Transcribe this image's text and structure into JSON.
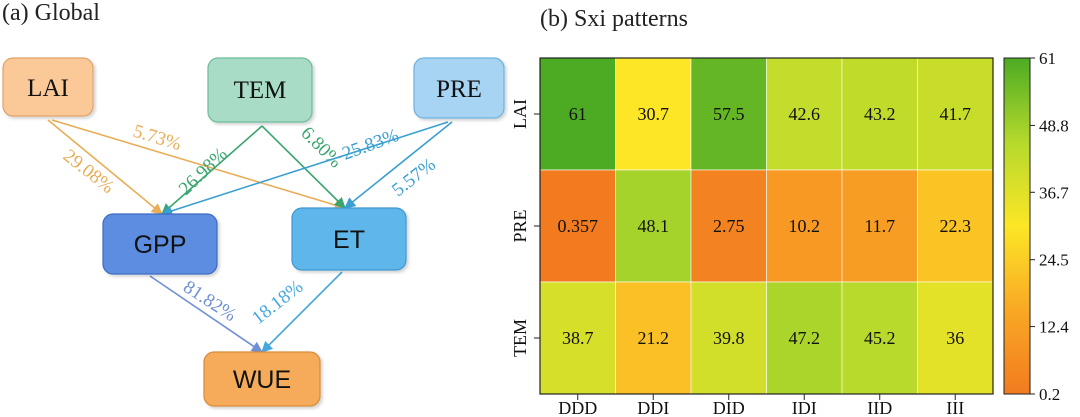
{
  "panel_a": {
    "title": "(a) Global",
    "nodes": {
      "lai": {
        "label": "LAI",
        "fill": "#fbc997",
        "stroke": "#e0a26a"
      },
      "tem": {
        "label": "TEM",
        "fill": "#a9dcc6",
        "stroke": "#6dbb9a"
      },
      "pre": {
        "label": "PRE",
        "fill": "#a6d4f2",
        "stroke": "#6db2e0"
      },
      "gpp": {
        "label": "GPP",
        "fill": "#5b8de0",
        "stroke": "#3c6cc1"
      },
      "et": {
        "label": "ET",
        "fill": "#5fb6ea",
        "stroke": "#3f97cf"
      },
      "wue": {
        "label": "WUE",
        "fill": "#f5ab5a",
        "stroke": "#d78b3a"
      }
    },
    "edges": {
      "lai_gpp": {
        "label": "29.08%",
        "color": "#e8ad55"
      },
      "lai_et": {
        "label": "5.73%",
        "color": "#e8ad55"
      },
      "tem_gpp": {
        "label": "26.98%",
        "color": "#3aa56e"
      },
      "tem_et": {
        "label": "6.80%",
        "color": "#3aa56e"
      },
      "pre_gpp": {
        "label": "25.83%",
        "color": "#3a9fd2"
      },
      "pre_et": {
        "label": "5.57%",
        "color": "#3a9fd2"
      },
      "gpp_wue": {
        "label": "81.82%",
        "color": "#6f8fd6"
      },
      "et_wue": {
        "label": "18.18%",
        "color": "#45a8df"
      }
    }
  },
  "chart_data": {
    "type": "heatmap",
    "title": "(b) Sxi patterns",
    "rows": [
      "LAI",
      "PRE",
      "TEM"
    ],
    "columns": [
      "DDD",
      "DDI",
      "DID",
      "IDI",
      "IID",
      "III"
    ],
    "values": [
      [
        61,
        30.7,
        57.5,
        42.6,
        43.2,
        41.7
      ],
      [
        0.357,
        48.1,
        2.75,
        10.2,
        11.7,
        22.3
      ],
      [
        38.7,
        21.2,
        39.8,
        47.2,
        45.2,
        36
      ]
    ],
    "cell_labels": [
      [
        "61",
        "30.7",
        "57.5",
        "42.6",
        "43.2",
        "41.7"
      ],
      [
        "0.357",
        "48.1",
        "2.75",
        "10.2",
        "11.7",
        "22.3"
      ],
      [
        "38.7",
        "21.2",
        "39.8",
        "47.2",
        "45.2",
        "36"
      ]
    ],
    "colorbar": {
      "min": 0.2,
      "max": 61,
      "ticks": [
        "61",
        "48.8",
        "36.7",
        "24.5",
        "12.4",
        "0.2"
      ],
      "tick_values": [
        61,
        48.8,
        36.7,
        24.5,
        12.4,
        0.2
      ],
      "stops": [
        "#f27b1f",
        "#f9a825",
        "#fce626",
        "#b5d92c",
        "#4cab23"
      ]
    }
  }
}
